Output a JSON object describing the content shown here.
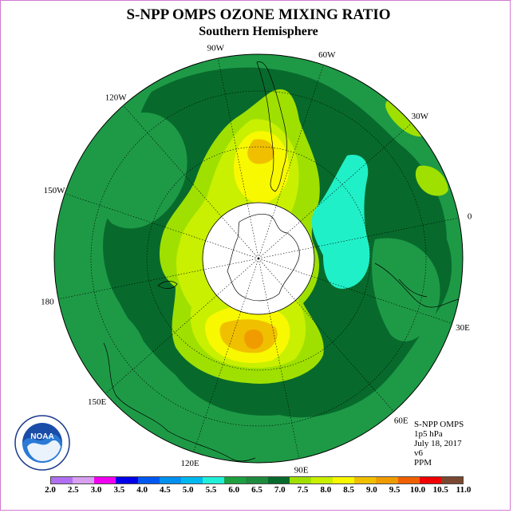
{
  "header": {
    "title": "S-NPP OMPS OZONE MIXING RATIO",
    "subtitle": "Southern Hemisphere"
  },
  "map": {
    "projection": "south-polar-stereographic",
    "longitude_labels": [
      {
        "label": "90W",
        "lon": -90
      },
      {
        "label": "60W",
        "lon": -60
      },
      {
        "label": "30W",
        "lon": -30
      },
      {
        "label": "0",
        "lon": 0
      },
      {
        "label": "30E",
        "lon": 30
      },
      {
        "label": "60E",
        "lon": 60
      },
      {
        "label": "90E",
        "lon": 90
      },
      {
        "label": "120E",
        "lon": 120
      },
      {
        "label": "150E",
        "lon": 150
      },
      {
        "label": "180",
        "lon": 180
      },
      {
        "label": "150W",
        "lon": -150
      },
      {
        "label": "120W",
        "lon": -120
      }
    ],
    "no_data_region": "polar-night",
    "colors": {
      "ocean_background": "#1e9a46",
      "dark_green": "#076a2c",
      "yellow_green": "#9fe000",
      "chartreuse": "#c8f000",
      "yellow": "#f8f800",
      "gold": "#f0c000",
      "orange": "#f09c00",
      "aquamarine": "#20f0c8"
    }
  },
  "info": {
    "line1": "S-NPP OMPS",
    "line2": "1p5 hPa",
    "line3": "July 18, 2017",
    "line4": "v6",
    "line5": "PPM"
  },
  "colorbar": {
    "labels": [
      "2.0",
      "2.5",
      "3.0",
      "3.5",
      "4.0",
      "4.5",
      "5.0",
      "5.5",
      "6.0",
      "6.5",
      "7.0",
      "7.5",
      "8.0",
      "8.5",
      "9.0",
      "9.5",
      "10.0",
      "10.5",
      "11.0"
    ],
    "colors": [
      "#b070f0",
      "#d8a0f0",
      "#f000f0",
      "#0000e8",
      "#0058f0",
      "#0090f0",
      "#00b8f0",
      "#20f0d8",
      "#1ea040",
      "#1e8a3e",
      "#076a2c",
      "#a0e000",
      "#c8f000",
      "#f8f800",
      "#f0c000",
      "#f09c00",
      "#f06000",
      "#f00000",
      "#7a4830"
    ]
  },
  "logo": {
    "text": "NOAA",
    "ring_text": "NATIONAL OCEANIC AND ATMOSPHERIC ADMINISTRATION · U.S. DEPARTMENT OF COMMERCE"
  }
}
